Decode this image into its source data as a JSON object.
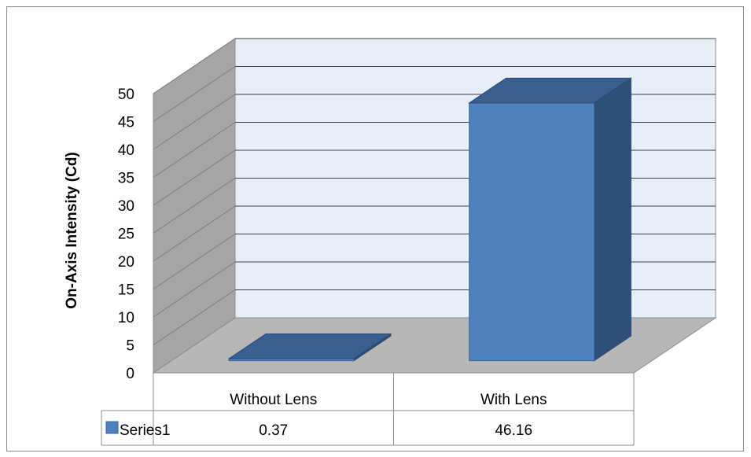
{
  "chart_data": {
    "type": "bar",
    "style": "3d-column-with-data-table",
    "categories": [
      "Without Lens",
      "With Lens"
    ],
    "series": [
      {
        "name": "Series1",
        "values": [
          0.37,
          46.16
        ],
        "value_labels": [
          "0.37",
          "46.16"
        ],
        "color": "#4f81bd"
      }
    ],
    "title": "",
    "xlabel": "",
    "ylabel": "On-Axis Intensity (Cd)",
    "ylim": [
      0,
      50
    ],
    "yticks": [
      0,
      5,
      10,
      15,
      20,
      25,
      30,
      35,
      40,
      45,
      50
    ],
    "ytick_labels": [
      "0",
      "5",
      "10",
      "15",
      "20",
      "25",
      "30",
      "35",
      "40",
      "45",
      "50"
    ],
    "grid": true,
    "legend": "data-table-left",
    "colors": {
      "bar_front": "#4f81bd",
      "bar_top": "#3a5f8f",
      "bar_side": "#2f4e78",
      "back_wall": "#e8eef8",
      "side_wall": "#a6a6a6",
      "floor": "#b7b7b7"
    }
  }
}
